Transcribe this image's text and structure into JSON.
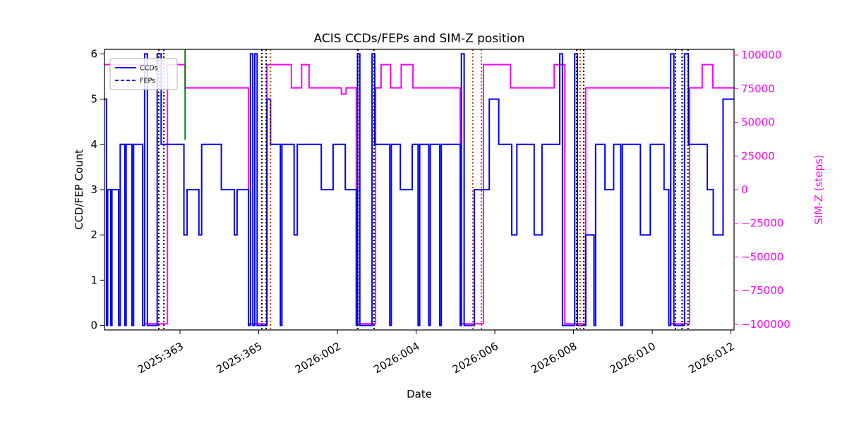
{
  "chart_data": {
    "type": "line",
    "title": "ACIS CCDs/FEPs and SIM-Z position",
    "xlabel": "Date",
    "ylabel_left": "CCD/FEP Count",
    "ylabel_right": "SIM-Z (steps)",
    "x_unit_note": "day offset, 0 = 2025:361",
    "xlim": [
      0.08,
      16.08
    ],
    "ylim_left": [
      -0.1,
      6.1
    ],
    "ylim_right": [
      -104200,
      104200
    ],
    "grid": false,
    "legend_position": "upper-left",
    "legend": [
      {
        "label": "CCDs",
        "style": "solid"
      },
      {
        "label": "FEPs",
        "style": "dashed"
      }
    ],
    "colors": {
      "ccd": "#0000ff",
      "simz": "#ff00ff",
      "green_event": "#008000",
      "orange_event": "#cc4400",
      "black_event": "#000000"
    },
    "x_ticks": [
      {
        "pos": 2,
        "label": "2025:363"
      },
      {
        "pos": 4,
        "label": "2025:365"
      },
      {
        "pos": 6,
        "label": "2026:002"
      },
      {
        "pos": 8,
        "label": "2026:004"
      },
      {
        "pos": 10,
        "label": "2026:006"
      },
      {
        "pos": 12,
        "label": "2026:008"
      },
      {
        "pos": 14,
        "label": "2026:010"
      },
      {
        "pos": 16,
        "label": "2026:012"
      }
    ],
    "y_ticks_left": [
      {
        "pos": 0,
        "label": "0"
      },
      {
        "pos": 1,
        "label": "1"
      },
      {
        "pos": 2,
        "label": "2"
      },
      {
        "pos": 3,
        "label": "3"
      },
      {
        "pos": 4,
        "label": "4"
      },
      {
        "pos": 5,
        "label": "5"
      },
      {
        "pos": 6,
        "label": "6"
      }
    ],
    "y_ticks_right": [
      {
        "pos": -100000,
        "label": "−100000"
      },
      {
        "pos": -75000,
        "label": "−75000"
      },
      {
        "pos": -50000,
        "label": "−50000"
      },
      {
        "pos": -25000,
        "label": "−25000"
      },
      {
        "pos": 0,
        "label": "0"
      },
      {
        "pos": 25000,
        "label": "25000"
      },
      {
        "pos": 50000,
        "label": "50000"
      },
      {
        "pos": 75000,
        "label": "75000"
      },
      {
        "pos": 100000,
        "label": "100000"
      }
    ],
    "series": {
      "ccds": {
        "name": "CCDs",
        "steps": [
          [
            0.08,
            5
          ],
          [
            0.13,
            0
          ],
          [
            0.16,
            3
          ],
          [
            0.24,
            0
          ],
          [
            0.27,
            3
          ],
          [
            0.44,
            0
          ],
          [
            0.48,
            4
          ],
          [
            0.6,
            0
          ],
          [
            0.63,
            4
          ],
          [
            0.78,
            0
          ],
          [
            0.82,
            4
          ],
          [
            1.05,
            0
          ],
          [
            1.1,
            6
          ],
          [
            1.17,
            0
          ],
          [
            1.42,
            6
          ],
          [
            1.52,
            4
          ],
          [
            2.1,
            2
          ],
          [
            2.18,
            3
          ],
          [
            2.48,
            2
          ],
          [
            2.55,
            4
          ],
          [
            3.05,
            3
          ],
          [
            3.38,
            2
          ],
          [
            3.45,
            3
          ],
          [
            3.74,
            0
          ],
          [
            3.79,
            6
          ],
          [
            3.85,
            0
          ],
          [
            3.9,
            6
          ],
          [
            3.96,
            0
          ],
          [
            4.21,
            5
          ],
          [
            4.3,
            4
          ],
          [
            4.55,
            0
          ],
          [
            4.59,
            4
          ],
          [
            4.9,
            2
          ],
          [
            4.98,
            4
          ],
          [
            5.59,
            3
          ],
          [
            5.89,
            4
          ],
          [
            6.2,
            3
          ],
          [
            6.48,
            0
          ],
          [
            6.51,
            6
          ],
          [
            6.57,
            0
          ],
          [
            6.88,
            6
          ],
          [
            6.95,
            4
          ],
          [
            7.33,
            0
          ],
          [
            7.37,
            4
          ],
          [
            7.6,
            3
          ],
          [
            7.9,
            4
          ],
          [
            8.05,
            0
          ],
          [
            8.09,
            4
          ],
          [
            8.32,
            0
          ],
          [
            8.36,
            4
          ],
          [
            8.6,
            0
          ],
          [
            8.64,
            4
          ],
          [
            9.12,
            0
          ],
          [
            9.15,
            6
          ],
          [
            9.22,
            0
          ],
          [
            9.48,
            3
          ],
          [
            9.86,
            5
          ],
          [
            10.1,
            4
          ],
          [
            10.43,
            2
          ],
          [
            10.56,
            4
          ],
          [
            11.0,
            2
          ],
          [
            11.2,
            4
          ],
          [
            11.65,
            6
          ],
          [
            11.72,
            0
          ],
          [
            12.03,
            6
          ],
          [
            12.1,
            0
          ],
          [
            12.31,
            2
          ],
          [
            12.52,
            0
          ],
          [
            12.56,
            4
          ],
          [
            12.8,
            3
          ],
          [
            13.02,
            4
          ],
          [
            13.2,
            0
          ],
          [
            13.24,
            4
          ],
          [
            13.7,
            2
          ],
          [
            13.95,
            4
          ],
          [
            14.3,
            3
          ],
          [
            14.42,
            0
          ],
          [
            14.47,
            6
          ],
          [
            14.55,
            0
          ],
          [
            14.82,
            6
          ],
          [
            14.92,
            4
          ],
          [
            15.4,
            3
          ],
          [
            15.55,
            2
          ],
          [
            15.8,
            5
          ]
        ]
      },
      "feps": {
        "name": "FEPs",
        "steps": [
          [
            0.08,
            5
          ],
          [
            0.13,
            0
          ],
          [
            0.16,
            3
          ],
          [
            0.24,
            0
          ],
          [
            0.27,
            3
          ],
          [
            0.44,
            0
          ],
          [
            0.48,
            4
          ],
          [
            0.6,
            0
          ],
          [
            0.63,
            4
          ],
          [
            0.78,
            0
          ],
          [
            0.82,
            4
          ],
          [
            1.05,
            0
          ],
          [
            1.1,
            6
          ],
          [
            1.17,
            0
          ],
          [
            1.42,
            6
          ],
          [
            1.52,
            4
          ],
          [
            2.1,
            2
          ],
          [
            2.18,
            3
          ],
          [
            2.48,
            2
          ],
          [
            2.55,
            4
          ],
          [
            3.05,
            3
          ],
          [
            3.38,
            2
          ],
          [
            3.45,
            3
          ],
          [
            3.74,
            0
          ],
          [
            3.79,
            6
          ],
          [
            3.85,
            0
          ],
          [
            3.9,
            6
          ],
          [
            3.96,
            0
          ],
          [
            4.21,
            5
          ],
          [
            4.3,
            4
          ],
          [
            4.55,
            0
          ],
          [
            4.59,
            4
          ],
          [
            4.9,
            2
          ],
          [
            4.98,
            4
          ],
          [
            5.59,
            3
          ],
          [
            5.89,
            4
          ],
          [
            6.2,
            3
          ],
          [
            6.48,
            0
          ],
          [
            6.51,
            6
          ],
          [
            6.57,
            0
          ],
          [
            6.88,
            6
          ],
          [
            6.95,
            4
          ],
          [
            7.33,
            0
          ],
          [
            7.37,
            4
          ],
          [
            7.6,
            3
          ],
          [
            7.9,
            4
          ],
          [
            8.05,
            0
          ],
          [
            8.09,
            4
          ],
          [
            8.32,
            0
          ],
          [
            8.36,
            4
          ],
          [
            8.6,
            0
          ],
          [
            8.64,
            4
          ],
          [
            9.12,
            0
          ],
          [
            9.15,
            6
          ],
          [
            9.22,
            0
          ],
          [
            9.48,
            3
          ],
          [
            9.86,
            5
          ],
          [
            10.1,
            4
          ],
          [
            10.43,
            2
          ],
          [
            10.56,
            4
          ],
          [
            11.0,
            2
          ],
          [
            11.2,
            4
          ],
          [
            11.65,
            6
          ],
          [
            11.72,
            0
          ],
          [
            12.03,
            6
          ],
          [
            12.1,
            0
          ],
          [
            12.31,
            2
          ],
          [
            12.52,
            0
          ],
          [
            12.56,
            4
          ],
          [
            12.8,
            3
          ],
          [
            13.02,
            4
          ],
          [
            13.2,
            0
          ],
          [
            13.24,
            4
          ],
          [
            13.7,
            2
          ],
          [
            13.95,
            4
          ],
          [
            14.3,
            3
          ],
          [
            14.42,
            0
          ],
          [
            14.47,
            6
          ],
          [
            14.55,
            0
          ],
          [
            14.82,
            6
          ],
          [
            14.92,
            4
          ],
          [
            15.4,
            3
          ],
          [
            15.55,
            2
          ],
          [
            15.8,
            5
          ]
        ]
      },
      "simz": {
        "name": "SIM-Z",
        "steps": [
          [
            0.08,
            92904
          ],
          [
            1.1,
            -99616
          ],
          [
            1.68,
            92904
          ],
          [
            2.13,
            75624
          ],
          [
            3.74,
            -99616
          ],
          [
            4.21,
            92904
          ],
          [
            4.83,
            75624
          ],
          [
            5.09,
            92904
          ],
          [
            5.28,
            75624
          ],
          [
            6.1,
            71000
          ],
          [
            6.22,
            75624
          ],
          [
            6.48,
            -99616
          ],
          [
            6.97,
            75624
          ],
          [
            7.11,
            92904
          ],
          [
            7.35,
            75624
          ],
          [
            7.62,
            92904
          ],
          [
            7.92,
            75624
          ],
          [
            9.12,
            -99616
          ],
          [
            9.71,
            92904
          ],
          [
            10.4,
            75624
          ],
          [
            11.51,
            92904
          ],
          [
            11.78,
            -99616
          ],
          [
            12.31,
            75624
          ],
          [
            14.47,
            -99616
          ],
          [
            14.95,
            75624
          ],
          [
            15.27,
            92904
          ],
          [
            15.54,
            75624
          ]
        ]
      }
    },
    "event_lines": {
      "black_dotted_days": [
        1.46,
        1.59,
        4.08,
        4.19,
        6.52,
        6.93,
        12.08,
        12.26,
        14.59,
        14.76,
        14.91
      ],
      "orange_dotted_days": [
        4.3,
        9.44,
        9.66,
        12.17
      ],
      "green_solid": [
        {
          "day": 2.13,
          "v_top": 6.1,
          "v_bottom": 4.1
        }
      ]
    }
  }
}
